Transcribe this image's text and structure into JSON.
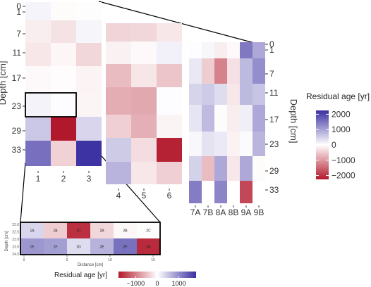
{
  "chart_data": [
    {
      "type": "heatmap",
      "name": "left",
      "x_labels": [
        "1",
        "2",
        "3"
      ],
      "y_labels": [
        "0",
        "1",
        "7",
        "11",
        "17",
        "23",
        "29",
        "33"
      ],
      "ylabel": "Depth [cm]",
      "rows": [
        {
          "depth": "0-4",
          "values": [
            130,
            -40,
            -20
          ]
        },
        {
          "depth": "7",
          "values": [
            -180,
            -300,
            120
          ]
        },
        {
          "depth": "11",
          "values": [
            -250,
            -90,
            -420
          ]
        },
        {
          "depth": "17",
          "values": [
            -60,
            -30,
            -120
          ]
        },
        {
          "depth": "23",
          "values": [
            140,
            30,
            -100
          ]
        },
        {
          "depth": "29",
          "values": [
            640,
            -2400,
            480
          ]
        },
        {
          "depth": "33",
          "values": [
            1650,
            -480,
            2350
          ]
        }
      ]
    },
    {
      "type": "heatmap",
      "name": "middle",
      "x_labels": [
        "4",
        "5",
        "6"
      ],
      "rows": [
        {
          "depth": "0-4",
          "values": [
            -450,
            -420,
            -250
          ]
        },
        {
          "depth": "7",
          "values": [
            -150,
            -60,
            160
          ]
        },
        {
          "depth": "11",
          "values": [
            -700,
            -260,
            -600
          ]
        },
        {
          "depth": "17",
          "values": [
            -850,
            -900,
            30
          ]
        },
        {
          "depth": "23",
          "values": [
            -500,
            -830,
            -110
          ]
        },
        {
          "depth": "29",
          "values": [
            600,
            -350,
            -2300
          ]
        },
        {
          "depth": "33",
          "values": [
            870,
            -250,
            -500
          ]
        }
      ]
    },
    {
      "type": "heatmap",
      "name": "right",
      "x_labels": [
        "7A",
        "7B",
        "8A",
        "8B",
        "9A",
        "9B"
      ],
      "y_labels": [
        "0",
        "1",
        "7",
        "11",
        "17",
        "23",
        "29",
        "33"
      ],
      "ylabel": "Depth [cm]",
      "rows": [
        {
          "depth": "0-4",
          "values": [
            30,
            100,
            -180,
            -60,
            1550,
            1000
          ]
        },
        {
          "depth": "7",
          "values": [
            260,
            -520,
            -1300,
            -320,
            800,
            1300
          ]
        },
        {
          "depth": "11",
          "values": [
            500,
            600,
            400,
            -250,
            800,
            680
          ]
        },
        {
          "depth": "17",
          "values": [
            300,
            780,
            40,
            -180,
            180,
            1000
          ]
        },
        {
          "depth": "23",
          "values": [
            80,
            320,
            250,
            -140,
            50,
            850
          ]
        },
        {
          "depth": "29",
          "values": [
            520,
            -700,
            1000,
            -250,
            1000,
            -40
          ]
        },
        {
          "depth": "33",
          "values": [
            1500,
            null,
            1400,
            null,
            -1900,
            null
          ]
        }
      ]
    }
  ],
  "legend": {
    "title": "Residual age [yr]",
    "ticks": [
      "2000",
      "1000",
      "0",
      "−1000",
      "−2000"
    ],
    "tick_values": [
      2000,
      1000,
      0,
      -1000,
      -2000
    ]
  },
  "inset": {
    "ylabel": "Depth [cm]",
    "xlabel": "Distance [cm]",
    "y_ticks": [
      "22.0",
      "22.5",
      "23.0",
      "23.5",
      "24.0"
    ],
    "x_ticks": [
      "0",
      "5",
      "10",
      "15"
    ],
    "rows": [
      [
        {
          "label": "1A",
          "value": 380
        },
        {
          "label": "1B",
          "value": -420
        },
        {
          "label": "1C",
          "value": -1700
        },
        {
          "label": "2A",
          "value": -330
        },
        {
          "label": "2B",
          "value": -60
        },
        {
          "label": "2C",
          "value": 20
        }
      ],
      [
        {
          "label": "1E",
          "value": 950
        },
        {
          "label": "1F",
          "value": 880
        },
        {
          "label": "1G",
          "value": 320
        },
        {
          "label": "2E",
          "value": 700
        },
        {
          "label": "2F",
          "value": 1300
        },
        {
          "label": "2G",
          "value": -1750
        }
      ]
    ],
    "legend": {
      "title": "Residual age [yr]",
      "ticks": [
        "−1000",
        "0",
        "1000"
      ],
      "tick_values": [
        -1000,
        0,
        1000
      ]
    }
  },
  "colors": {
    "negative": "#b2182b",
    "zero": "#ffffff",
    "positive": "#3a2fa0",
    "highlight_box": "#000000"
  }
}
